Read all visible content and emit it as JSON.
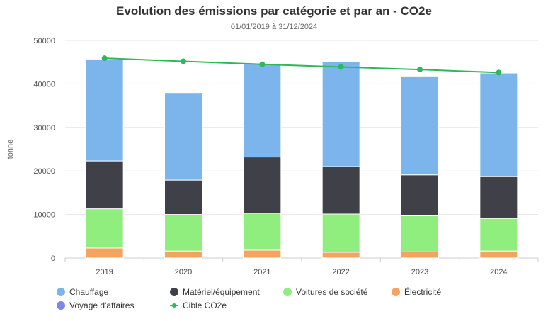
{
  "chart_data": {
    "type": "bar",
    "stacked": true,
    "title": "Evolution des émissions par catégorie et par an - CO2e",
    "subtitle": "01/01/2019 à 31/12/2024",
    "xlabel": "",
    "ylabel": "tonne",
    "ylim": [
      0,
      50000
    ],
    "yticks": [
      "0",
      "10000",
      "20000",
      "30000",
      "40000",
      "50000"
    ],
    "categories": [
      "2019",
      "2020",
      "2021",
      "2022",
      "2023",
      "2024"
    ],
    "grid": true,
    "legend_position": "bottom",
    "series": [
      {
        "name": "Électricité",
        "color": "#f4a460",
        "values": [
          2300,
          1600,
          1800,
          1300,
          1400,
          1600
        ]
      },
      {
        "name": "Voitures de société",
        "color": "#90ee7e",
        "values": [
          9000,
          8400,
          8500,
          8800,
          8300,
          7500
        ]
      },
      {
        "name": "Matériel/équipement",
        "color": "#404048",
        "values": [
          11000,
          7900,
          12900,
          10900,
          9400,
          9600
        ]
      },
      {
        "name": "Chauffage",
        "color": "#7cb5ec",
        "values": [
          23400,
          20100,
          21400,
          24100,
          22700,
          23800
        ]
      },
      {
        "name": "Voyage d'affaires",
        "color": "#8085e9",
        "values": [
          0,
          0,
          0,
          0,
          0,
          0
        ]
      }
    ],
    "line_series": {
      "name": "Cible CO2e",
      "color": "#2db85a",
      "values": [
        45900,
        45200,
        44500,
        43900,
        43300,
        42600
      ]
    }
  },
  "legend": {
    "items": [
      {
        "label": "Chauffage",
        "color": "#7cb5ec",
        "kind": "dot"
      },
      {
        "label": "Matériel/équipement",
        "color": "#404048",
        "kind": "dot"
      },
      {
        "label": "Voitures de société",
        "color": "#90ee7e",
        "kind": "dot"
      },
      {
        "label": "Électricité",
        "color": "#f4a460",
        "kind": "dot"
      },
      {
        "label": "Voyage d'affaires",
        "color": "#8085e9",
        "kind": "dot"
      },
      {
        "label": "Cible CO2e",
        "color": "#2db85a",
        "kind": "line"
      }
    ]
  }
}
